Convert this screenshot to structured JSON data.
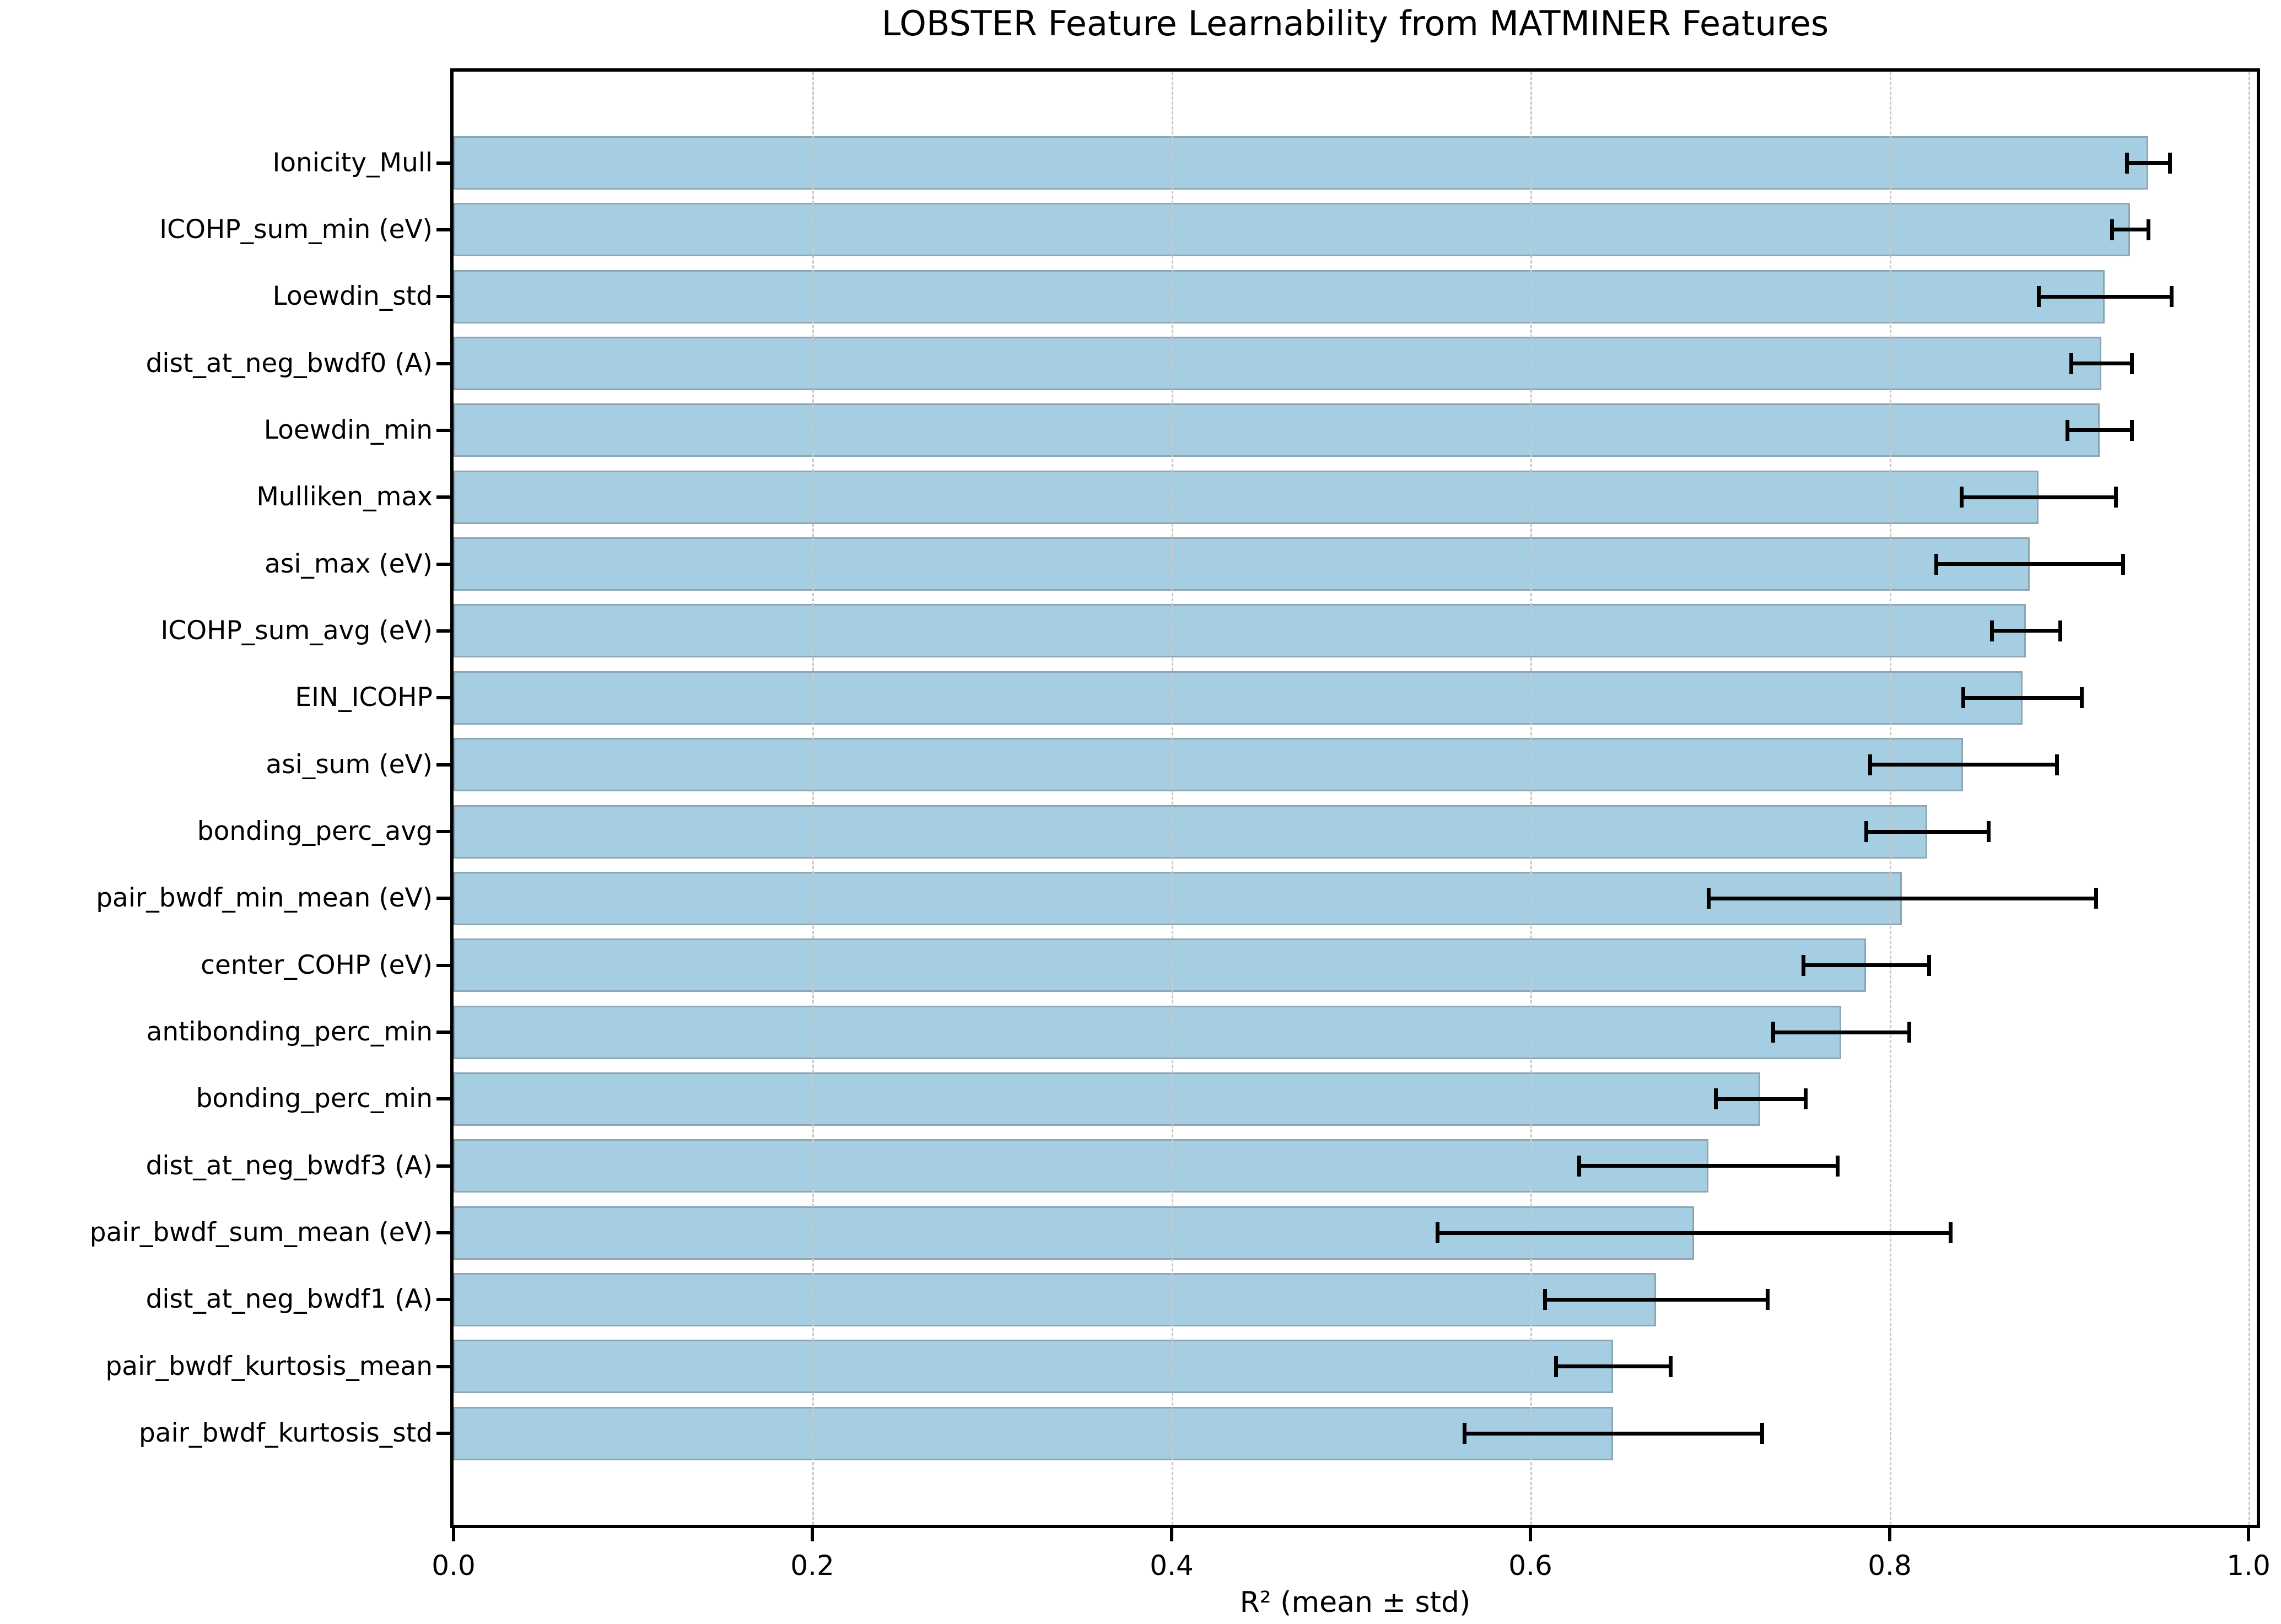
{
  "figure": {
    "background": "#ffffff"
  },
  "chart_data": {
    "type": "bar",
    "orientation": "horizontal",
    "title": "LOBSTER Feature Learnability from MATMINER Features",
    "xlabel": "R² (mean ± std)",
    "ylabel": "",
    "categories": [
      "Ionicity_Mull",
      "ICOHP_sum_min (eV)",
      "Loewdin_std",
      "dist_at_neg_bwdf0 (A)",
      "Loewdin_min",
      "Mulliken_max",
      "asi_max (eV)",
      "ICOHP_sum_avg (eV)",
      "EIN_ICOHP",
      "asi_sum (eV)",
      "bonding_perc_avg",
      "pair_bwdf_min_mean (eV)",
      "center_COHP (eV)",
      "antibonding_perc_min",
      "bonding_perc_min",
      "dist_at_neg_bwdf3 (A)",
      "pair_bwdf_sum_mean (eV)",
      "dist_at_neg_bwdf1 (A)",
      "pair_bwdf_kurtosis_mean",
      "pair_bwdf_kurtosis_std"
    ],
    "series": [
      {
        "name": "R² mean",
        "values": [
          0.944,
          0.934,
          0.92,
          0.918,
          0.917,
          0.883,
          0.878,
          0.876,
          0.874,
          0.841,
          0.821,
          0.807,
          0.787,
          0.773,
          0.728,
          0.699,
          0.691,
          0.67,
          0.646,
          0.646
        ],
        "errors": [
          0.012,
          0.01,
          0.037,
          0.017,
          0.018,
          0.043,
          0.052,
          0.019,
          0.033,
          0.052,
          0.034,
          0.108,
          0.035,
          0.038,
          0.025,
          0.072,
          0.143,
          0.062,
          0.032,
          0.083
        ]
      }
    ],
    "xlim": [
      0.0,
      1.005
    ],
    "xticks": [
      0.0,
      0.2,
      0.4,
      0.6,
      0.8,
      1.0
    ],
    "xtick_labels": [
      "0.0",
      "0.2",
      "0.4",
      "0.6",
      "0.8",
      "1.0"
    ],
    "grid": "x-axis, dashed",
    "legend": "none",
    "colors": {
      "bar_fill": "#a6cee3",
      "bar_edge": "#8ea6b4",
      "error_bar": "#000000",
      "grid_line": "#c8c8c8",
      "spine": "#000000",
      "text": "#000000",
      "background": "#ffffff"
    }
  }
}
